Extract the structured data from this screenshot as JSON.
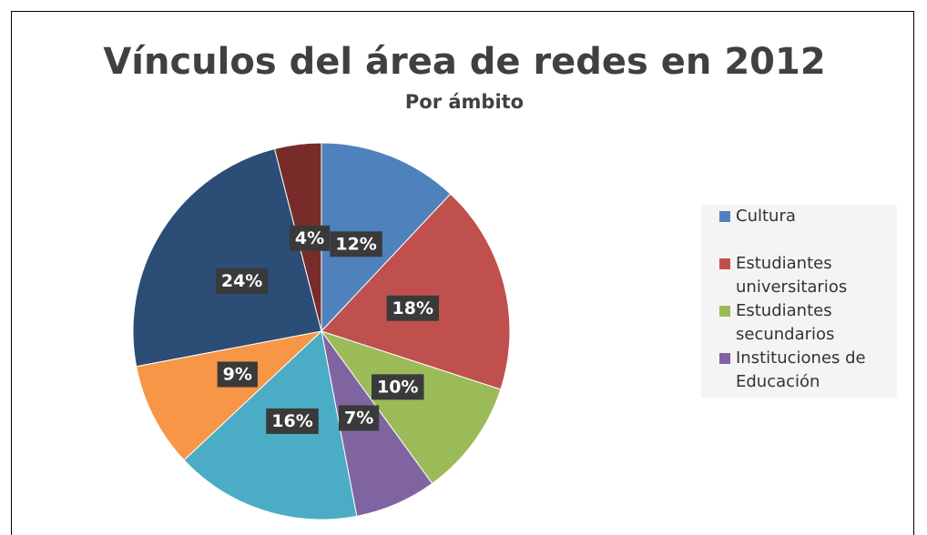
{
  "chart_data": {
    "type": "pie",
    "title": "Vínculos del área de redes en 2012",
    "subtitle": "Por ámbito",
    "categories": [
      "Cultura",
      "Estudiantes universitarios",
      "Estudiantes secundarios",
      "Instituciones de Educación",
      null,
      null,
      null,
      null
    ],
    "values": [
      12,
      18,
      10,
      7,
      16,
      9,
      24,
      4
    ],
    "value_labels": [
      "12%",
      "18%",
      "10%",
      "7%",
      "16%",
      "9%",
      "24%",
      "4%"
    ],
    "colors": [
      "#4f81bd",
      "#c0504d",
      "#9bbb59",
      "#8064a2",
      "#4bacc6",
      "#f79646",
      "#2c4d75",
      "#772c2a"
    ],
    "legend": "right"
  }
}
